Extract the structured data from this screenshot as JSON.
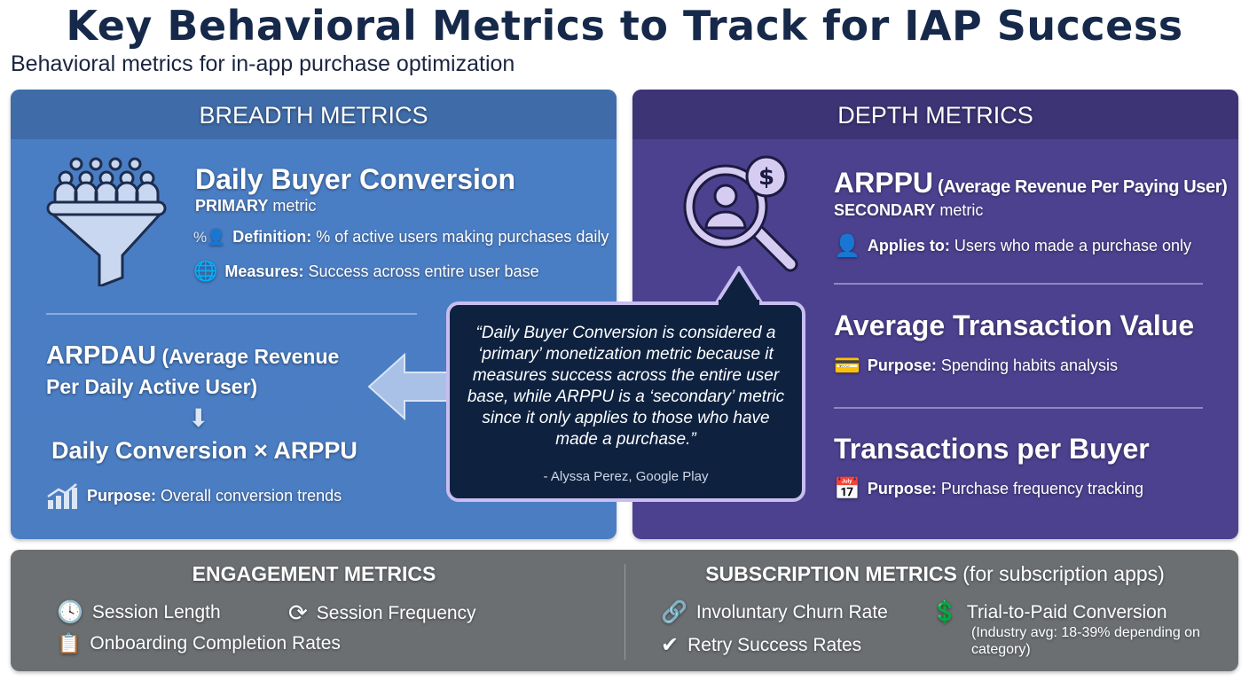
{
  "title": "Key Behavioral Metrics to Track for IAP Success",
  "subtitle": "Behavioral metrics for in-app purchase optimization",
  "breadth": {
    "header": "BREADTH METRICS",
    "daily_buyer": {
      "title": "Daily Buyer Conversion",
      "tier": "PRIMARY",
      "tier_suffix": " metric",
      "definition_label": "Definition:",
      "definition": " % of active users making purchases daily",
      "measures_label": "Measures:",
      "measures": " Success across entire user base"
    },
    "arpdau": {
      "title": "ARPDAU",
      "paren1": " (Average Revenue",
      "line2": "Per Daily Active User)",
      "arrow": "⬇",
      "formula": "Daily Conversion × ARPPU",
      "purpose_label": "Purpose:",
      "purpose": " Overall conversion trends"
    }
  },
  "depth": {
    "header": "DEPTH METRICS",
    "arppu": {
      "title": "ARPPU",
      "paren": " (Average Revenue Per Paying User)",
      "tier": "SECONDARY",
      "tier_suffix": " metric",
      "applies_label": "Applies to:",
      "applies": " Users who made a purchase only"
    },
    "atv": {
      "title": "Average Transaction Value",
      "purpose_label": "Purpose:",
      "purpose": " Spending habits analysis"
    },
    "tpb": {
      "title": "Transactions per Buyer",
      "purpose_label": "Purpose:",
      "purpose": " Purchase frequency tracking"
    }
  },
  "quote": {
    "text": "“Daily Buyer Conversion is considered a ‘primary’ monetization metric because it measures success across the entire user base, while ARPPU is a ‘secondary’ metric since it only applies to those who have made a purchase.”",
    "attribution": "- Alyssa Perez, Google Play"
  },
  "engagement": {
    "header": "ENGAGEMENT METRICS",
    "items": [
      "Session Length",
      "Session Frequency",
      "Onboarding Completion Rates"
    ]
  },
  "subscription": {
    "header": "SUBSCRIPTION METRICS",
    "header_suffix": " (for subscription apps)",
    "items": [
      "Involuntary Churn Rate",
      "Trial-to-Paid Conversion",
      "Retry Success Rates"
    ],
    "trial_note": "(Industry avg: 18-39% depending on category)"
  },
  "colors": {
    "title": "#16294a",
    "breadth": "#4a7ec4",
    "depth": "#4c418f",
    "bottom": "#6c6f72",
    "quote_bg": "#0e2240",
    "quote_border": "#c8bdf0"
  }
}
